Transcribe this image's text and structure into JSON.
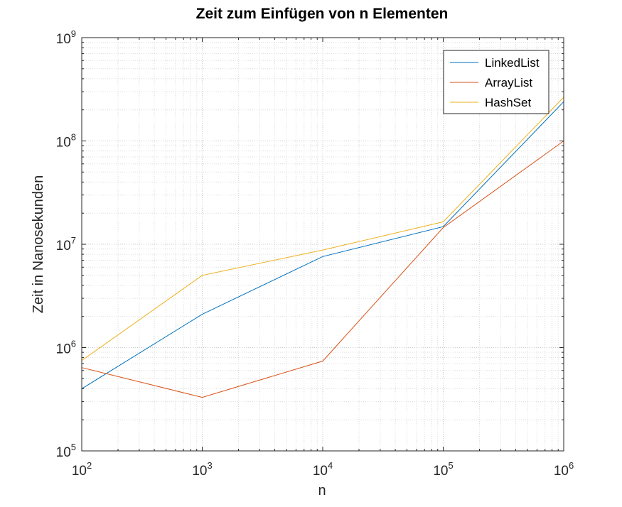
{
  "chart_data": {
    "type": "line",
    "title": "Zeit zum Einfügen von n Elementen",
    "xlabel": "n",
    "ylabel": "Zeit in Nanosekunden",
    "xscale": "log",
    "yscale": "log",
    "xlim": [
      100,
      1000000
    ],
    "ylim": [
      100000,
      1000000000
    ],
    "grid": true,
    "minor_grid": true,
    "legend_position": "top-right",
    "x": [
      100,
      1000,
      10000,
      100000,
      1000000
    ],
    "x_ticks": [
      {
        "base": "10",
        "exp": "2"
      },
      {
        "base": "10",
        "exp": "3"
      },
      {
        "base": "10",
        "exp": "4"
      },
      {
        "base": "10",
        "exp": "5"
      },
      {
        "base": "10",
        "exp": "6"
      }
    ],
    "y_ticks": [
      {
        "base": "10",
        "exp": "5"
      },
      {
        "base": "10",
        "exp": "6"
      },
      {
        "base": "10",
        "exp": "7"
      },
      {
        "base": "10",
        "exp": "8"
      },
      {
        "base": "10",
        "exp": "9"
      }
    ],
    "series": [
      {
        "name": "LinkedList",
        "color": "#0072bd",
        "values": [
          400000,
          2100000,
          7600000,
          14800000,
          240000000
        ]
      },
      {
        "name": "ArrayList",
        "color": "#d95319",
        "values": [
          640000,
          330000,
          740000,
          14500000,
          100000000
        ]
      },
      {
        "name": "HashSet",
        "color": "#edb120",
        "values": [
          750000,
          5000000,
          8800000,
          16500000,
          265000000
        ]
      }
    ]
  }
}
